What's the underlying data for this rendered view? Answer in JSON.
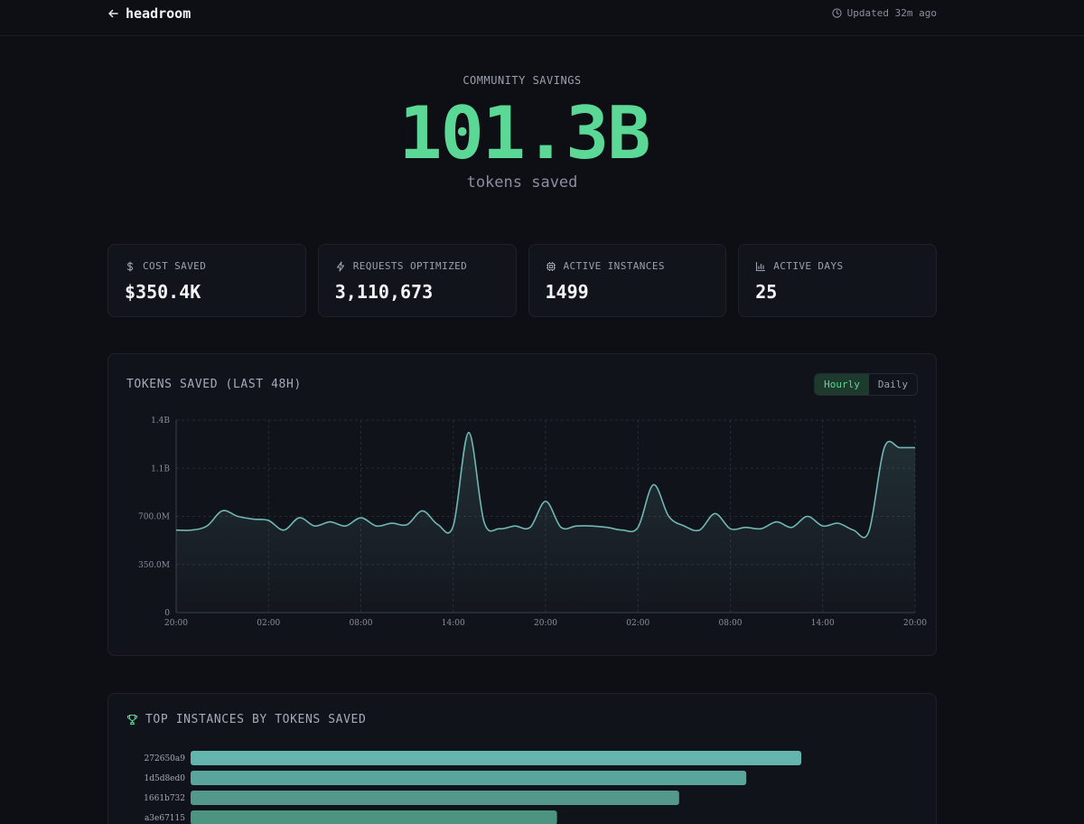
{
  "header": {
    "brand": "headroom",
    "updated": "Updated 32m ago"
  },
  "hero": {
    "label": "COMMUNITY SAVINGS",
    "value": "101.3B",
    "sub": "tokens saved"
  },
  "stats": [
    {
      "icon": "dollar-icon",
      "label": "COST SAVED",
      "value": "$350.4K"
    },
    {
      "icon": "lightning-icon",
      "label": "REQUESTS OPTIMIZED",
      "value": "3,110,673"
    },
    {
      "icon": "chip-icon",
      "label": "ACTIVE INSTANCES",
      "value": "1499"
    },
    {
      "icon": "bar-chart-icon",
      "label": "ACTIVE DAYS",
      "value": "25"
    }
  ],
  "colors": {
    "accent": "#5bd896",
    "line": "#6fb7b4",
    "bar_top": "#63b5ae",
    "bar_low": "#4d9480"
  },
  "chart_data": [
    {
      "type": "area",
      "title": "TOKENS SAVED (LAST 48H)",
      "toggle": {
        "options": [
          "Hourly",
          "Daily"
        ],
        "selected": "Hourly"
      },
      "yticks": [
        "0",
        "350.0M",
        "700.0M",
        "1.1B",
        "1.4B"
      ],
      "ylim": [
        0,
        1400000000
      ],
      "xticks": [
        "20:00",
        "02:00",
        "08:00",
        "14:00",
        "20:00",
        "02:00",
        "08:00",
        "14:00",
        "20:00"
      ],
      "grid": true,
      "x_hours": [
        0,
        1,
        2,
        3,
        4,
        5,
        6,
        7,
        8,
        9,
        10,
        11,
        12,
        13,
        14,
        15,
        16,
        17,
        18,
        19,
        20,
        21,
        22,
        23,
        24,
        25,
        26,
        27,
        28,
        29,
        30,
        31,
        32,
        33,
        34,
        35,
        36,
        37,
        38,
        39,
        40,
        41,
        42,
        43,
        44,
        45,
        46,
        47,
        48
      ],
      "values": [
        600,
        600,
        630,
        740,
        700,
        680,
        670,
        600,
        690,
        630,
        660,
        630,
        690,
        630,
        650,
        640,
        740,
        640,
        630,
        1310,
        660,
        610,
        630,
        620,
        810,
        620,
        630,
        630,
        620,
        600,
        620,
        930,
        700,
        630,
        600,
        720,
        610,
        620,
        610,
        660,
        620,
        700,
        630,
        650,
        600,
        590,
        1200,
        1200,
        1200
      ]
    },
    {
      "type": "bar",
      "orientation": "horizontal",
      "title": "TOP INSTANCES BY TOKENS SAVED",
      "categories": [
        "272650a9",
        "1d5d8ed0",
        "1661b732",
        "a3e67115"
      ],
      "values": [
        100,
        91,
        80,
        60
      ]
    }
  ]
}
